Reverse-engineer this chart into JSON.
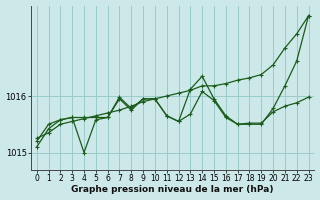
{
  "xlabel": "Graphe pression niveau de la mer (hPa)",
  "background_color": "#cce8e8",
  "plot_bg_color": "#cce8e8",
  "grid_color": "#99cccc",
  "line_color": "#1a5c1a",
  "ylim": [
    1014.7,
    1017.6
  ],
  "xlim": [
    -0.5,
    23.5
  ],
  "yticks": [
    1015,
    1016
  ],
  "xticks": [
    0,
    1,
    2,
    3,
    4,
    5,
    6,
    7,
    8,
    9,
    10,
    11,
    12,
    13,
    14,
    15,
    16,
    17,
    18,
    19,
    20,
    21,
    22,
    23
  ],
  "series1_x": [
    0,
    1,
    2,
    3,
    4,
    5,
    6,
    7,
    8,
    9,
    10,
    11,
    12,
    13,
    14,
    15,
    16,
    17,
    18,
    19,
    20,
    21,
    22,
    23
  ],
  "series1_y": [
    1015.25,
    1015.35,
    1015.5,
    1015.55,
    1015.6,
    1015.65,
    1015.7,
    1015.75,
    1015.82,
    1015.9,
    1015.95,
    1016.0,
    1016.05,
    1016.1,
    1016.18,
    1016.18,
    1016.22,
    1016.28,
    1016.32,
    1016.38,
    1016.55,
    1016.85,
    1017.1,
    1017.42
  ],
  "series2_x": [
    0,
    1,
    2,
    3,
    4,
    5,
    6,
    7,
    8,
    9,
    10,
    11,
    12,
    13,
    14,
    15,
    16,
    17,
    18,
    19,
    20,
    21,
    22,
    23
  ],
  "series2_y": [
    1015.2,
    1015.5,
    1015.58,
    1015.62,
    1015.0,
    1015.58,
    1015.62,
    1015.95,
    1015.75,
    1015.95,
    1015.95,
    1015.65,
    1015.55,
    1015.68,
    1016.08,
    1015.92,
    1015.62,
    1015.5,
    1015.52,
    1015.52,
    1015.72,
    1015.82,
    1015.88,
    1015.98
  ],
  "series3_x": [
    0,
    1,
    2,
    3,
    4,
    5,
    6,
    7,
    8,
    9,
    10,
    11,
    12,
    13,
    14,
    15,
    16,
    17,
    18,
    19,
    20,
    21,
    22,
    23
  ],
  "series3_y": [
    1015.1,
    1015.42,
    1015.58,
    1015.62,
    1015.62,
    1015.62,
    1015.62,
    1015.98,
    1015.78,
    1015.95,
    1015.95,
    1015.65,
    1015.55,
    1016.12,
    1016.35,
    1015.95,
    1015.65,
    1015.5,
    1015.5,
    1015.5,
    1015.78,
    1016.18,
    1016.62,
    1017.42
  ],
  "tick_fontsize": 6,
  "xlabel_fontsize": 6.5
}
